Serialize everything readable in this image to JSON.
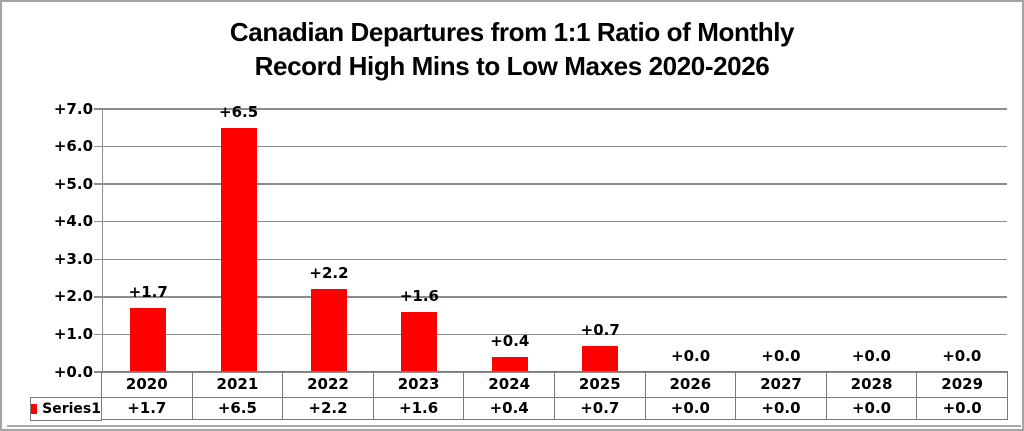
{
  "window": {
    "background": "#ffffff",
    "frame_border_color": "#a4a4a4"
  },
  "title": {
    "line1": "Canadian Departures from 1:1 Ratio of Monthly",
    "line2": "Record High Mins to Low Maxes 2020-2026"
  },
  "legend": {
    "series_label": "Series1",
    "swatch_color": "#ff0000"
  },
  "chart_data": {
    "type": "bar",
    "title": "Canadian Departures from 1:1 Ratio of Monthly Record High Mins to Low Maxes 2020-2026",
    "categories": [
      "2020",
      "2021",
      "2022",
      "2023",
      "2024",
      "2025",
      "2026",
      "2027",
      "2028",
      "2029"
    ],
    "series": [
      {
        "name": "Series1",
        "values": [
          1.7,
          6.5,
          2.2,
          1.6,
          0.4,
          0.7,
          0.0,
          0.0,
          0.0,
          0.0
        ]
      }
    ],
    "value_labels": [
      "+1.7",
      "+6.5",
      "+2.2",
      "+1.6",
      "+0.4",
      "+0.7",
      "+0.0",
      "+0.0",
      "+0.0",
      "+0.0"
    ],
    "xlabel": "",
    "ylabel": "",
    "ylim": [
      0,
      7
    ],
    "yticks": [
      0,
      1,
      2,
      3,
      4,
      5,
      6,
      7
    ],
    "ytick_labels": [
      "+0.0",
      "+1.0",
      "+2.0",
      "+3.0",
      "+4.0",
      "+5.0",
      "+6.0",
      "+7.0"
    ],
    "grid": true,
    "gridline_color": "#8c8c8c",
    "bar_color": "#ff0000",
    "legend_position": "bottom-left-table",
    "data_table_shown": true
  }
}
